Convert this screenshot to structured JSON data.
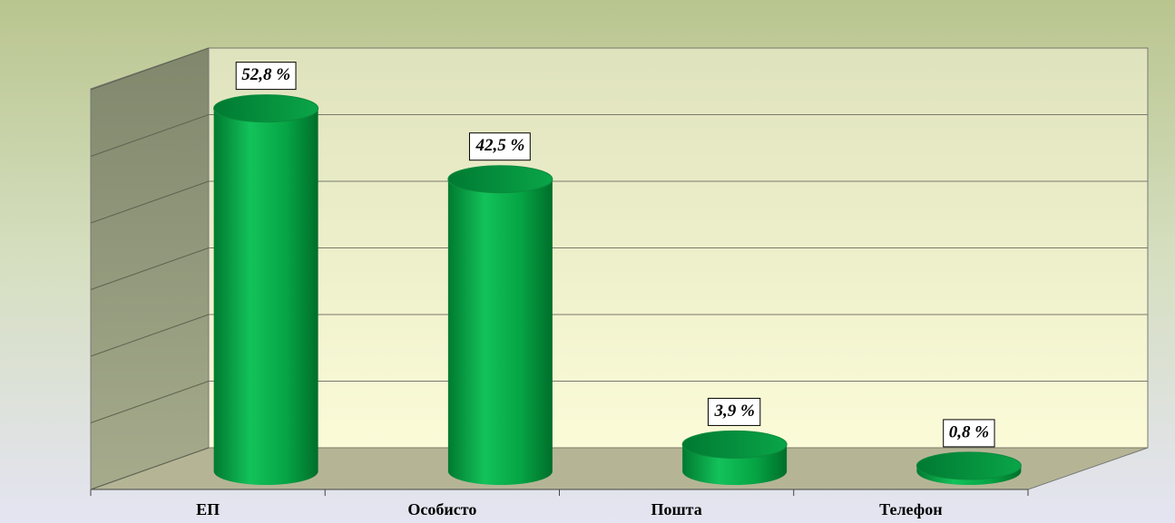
{
  "chart_data": {
    "type": "bar3d",
    "categories": [
      "ЕП",
      "Особисто",
      "Пошта",
      "Телефон"
    ],
    "values": [
      52.8,
      42.5,
      3.9,
      0.8
    ],
    "value_labels": [
      "52,8 %",
      "42,5 %",
      "3,9 %",
      "0,8 %"
    ],
    "color": "#00a64f",
    "ylim": [
      0,
      60
    ],
    "yticks": [
      0,
      10,
      20,
      30,
      40,
      50,
      60
    ],
    "grid": true
  }
}
